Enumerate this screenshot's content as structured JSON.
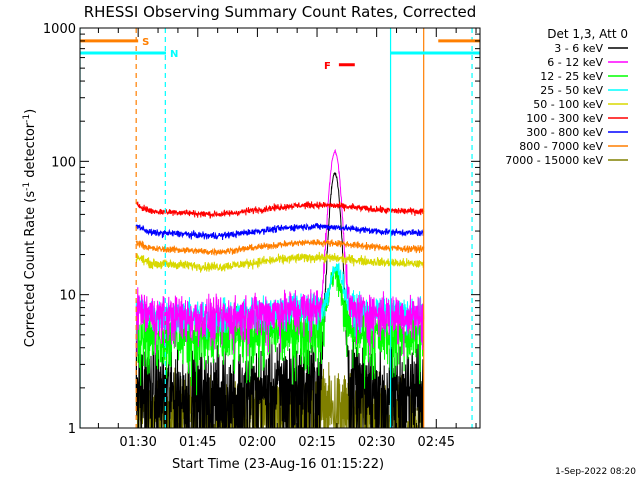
{
  "chart_data": {
    "type": "line",
    "title": "RHESSI Observing Summary Count Rates, Corrected",
    "xlabel": "Start Time (23-Aug-16 01:15:22)",
    "ylabel_main": "Corrected Count Rate (s",
    "ylabel_sup1": "-1",
    "ylabel_mid": " detector",
    "ylabel_sup2": "-1",
    "ylabel_end": ")",
    "yscale": "log",
    "ylim": [
      1,
      1000
    ],
    "xlim": [
      "01:15:22",
      "02:56:00"
    ],
    "x_ticks": [
      "01:30",
      "01:45",
      "02:00",
      "02:15",
      "02:30",
      "02:45"
    ],
    "y_ticks": [
      "1",
      "10",
      "100",
      "1000"
    ],
    "legend_title": "Det 1,3, Att 0",
    "legend_position": "right",
    "footer_date": "1-Sep-2022 08:20",
    "flags": [
      {
        "label": "S",
        "color": "#ff7f00",
        "y": 800,
        "segments": [
          [
            "01:15:22",
            "01:30:00"
          ],
          [
            "02:45:30",
            "02:56:00"
          ]
        ]
      },
      {
        "label": "N",
        "color": "#00ffff",
        "y": 650,
        "segments": [
          [
            "01:15:22",
            "01:37:00"
          ],
          [
            "02:33:30",
            "02:56:00"
          ]
        ]
      },
      {
        "label": "F",
        "color": "#ff0000",
        "y": 530,
        "segments": [
          [
            "02:20:30",
            "02:24:30"
          ]
        ]
      }
    ],
    "vlines": [
      {
        "x": "01:15:22",
        "color": "#00ffff",
        "style": "solid"
      },
      {
        "x": "01:29:30",
        "color": "#ff7f00",
        "style": "dashed"
      },
      {
        "x": "01:36:50",
        "color": "#00ffff",
        "style": "dashed"
      },
      {
        "x": "02:33:30",
        "color": "#00ffff",
        "style": "solid"
      },
      {
        "x": "02:41:50",
        "color": "#ff7f00",
        "style": "solid"
      },
      {
        "x": "02:54:00",
        "color": "#00ffff",
        "style": "dashed"
      }
    ],
    "data_range": [
      "01:29:30",
      "02:41:50"
    ],
    "series": [
      {
        "name": "3 - 6 keV",
        "color": "#000000",
        "level": 1.8,
        "noise": 1.0,
        "peak": 80,
        "peak_t": "02:19:30",
        "peak_w": 1.6
      },
      {
        "name": "6 - 12 keV",
        "color": "#ff00ff",
        "level": 7,
        "noise": 0.35,
        "peak": 110,
        "peak_t": "02:19:30",
        "peak_w": 1.7
      },
      {
        "name": "12 - 25 keV",
        "color": "#00ff00",
        "level": 5,
        "noise": 0.45,
        "peak": 9,
        "peak_t": "02:19:30",
        "peak_w": 2.0
      },
      {
        "name": "25 - 50 keV",
        "color": "#00ffff",
        "level": 7.2,
        "noise": 0.25,
        "peak": 8,
        "peak_t": "02:20:00",
        "peak_w": 2.0
      },
      {
        "name": "50 - 100 keV",
        "color": "#d8d800",
        "level": 17,
        "noise": 0.07,
        "peak": 0,
        "peak_t": "02:19:30",
        "peak_w": 2.0
      },
      {
        "name": "100 - 300 keV",
        "color": "#ff0000",
        "level": 42,
        "noise": 0.05,
        "peak": 0,
        "peak_t": "02:19:30",
        "peak_w": 2.0
      },
      {
        "name": "300 - 800 keV",
        "color": "#0000ff",
        "level": 29,
        "noise": 0.05,
        "peak": 0,
        "peak_t": "02:19:30",
        "peak_w": 2.0
      },
      {
        "name": "800 - 7000 keV",
        "color": "#ff7f00",
        "level": 22,
        "noise": 0.05,
        "peak": 0,
        "peak_t": "02:19:30",
        "peak_w": 2.0
      },
      {
        "name": "7000 - 15000 keV",
        "color": "#808000",
        "level": 1.2,
        "noise": 0.9,
        "peak": 0,
        "peak_t": "02:19:30",
        "peak_w": 2.0
      }
    ]
  }
}
